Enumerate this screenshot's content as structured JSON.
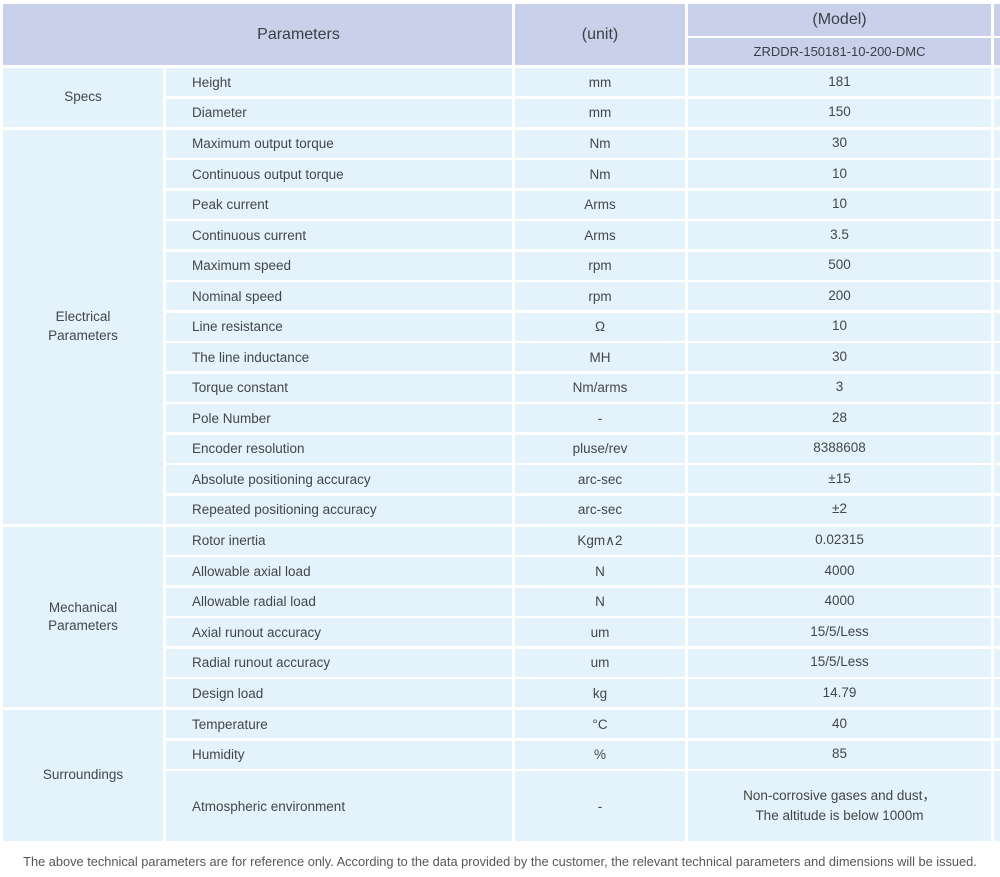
{
  "table": {
    "header": {
      "parameters_label": "Parameters",
      "unit_label": "(unit)",
      "model_label": "(Model)",
      "model_value": "ZRDDR-150181-10-200-DMC"
    },
    "sections": [
      {
        "name": "Specs",
        "rows": [
          {
            "param": "Height",
            "unit": "mm",
            "value": "181"
          },
          {
            "param": "Diameter",
            "unit": "mm",
            "value": "150"
          }
        ]
      },
      {
        "name": "Electrical\nParameters",
        "rows": [
          {
            "param": "Maximum output torque",
            "unit": "Nm",
            "value": "30"
          },
          {
            "param": "Continuous output torque",
            "unit": "Nm",
            "value": "10"
          },
          {
            "param": "Peak current",
            "unit": "Arms",
            "value": "10"
          },
          {
            "param": "Continuous current",
            "unit": "Arms",
            "value": "3.5"
          },
          {
            "param": "Maximum speed",
            "unit": "rpm",
            "value": "500"
          },
          {
            "param": "Nominal speed",
            "unit": "rpm",
            "value": "200"
          },
          {
            "param": "Line resistance",
            "unit": "Ω",
            "value": "10"
          },
          {
            "param": "The line inductance",
            "unit": "MH",
            "value": "30"
          },
          {
            "param": "Torque constant",
            "unit": "Nm/arms",
            "value": "3"
          },
          {
            "param": "Pole Number",
            "unit": "-",
            "value": "28"
          },
          {
            "param": "Encoder resolution",
            "unit": "pluse/rev",
            "value": "8388608"
          },
          {
            "param": "Absolute positioning accuracy",
            "unit": "arc-sec",
            "value": "±15"
          },
          {
            "param": "Repeated positioning accuracy",
            "unit": "arc-sec",
            "value": "±2"
          }
        ]
      },
      {
        "name": "Mechanical\nParameters",
        "rows": [
          {
            "param": "Rotor inertia",
            "unit": "Kgm∧2",
            "value": "0.02315"
          },
          {
            "param": "Allowable axial load",
            "unit": "N",
            "value": "4000"
          },
          {
            "param": "Allowable radial load",
            "unit": "N",
            "value": "4000"
          },
          {
            "param": "Axial runout accuracy",
            "unit": "um",
            "value": "15/5/Less"
          },
          {
            "param": "Radial runout accuracy",
            "unit": "um",
            "value": "15/5/Less"
          },
          {
            "param": "Design load",
            "unit": "kg",
            "value": "14.79"
          }
        ]
      },
      {
        "name": "Surroundings",
        "rows": [
          {
            "param": "Temperature",
            "unit": "°C",
            "value": "40"
          },
          {
            "param": "Humidity",
            "unit": "%",
            "value": "85"
          },
          {
            "param": "Atmospheric environment",
            "unit": "-",
            "value": "Non-corrosive gases and dust，\nThe altitude is below 1000m",
            "tall": true
          }
        ]
      }
    ],
    "footnote": "The above technical parameters are for reference only. According to the data provided by the customer, the relevant technical parameters and dimensions will be issued.",
    "colors": {
      "header_bg": "#c9d0e9",
      "row_bg": "#e4f2fb",
      "text": "#43464a",
      "footnote_text": "#54575a"
    }
  }
}
